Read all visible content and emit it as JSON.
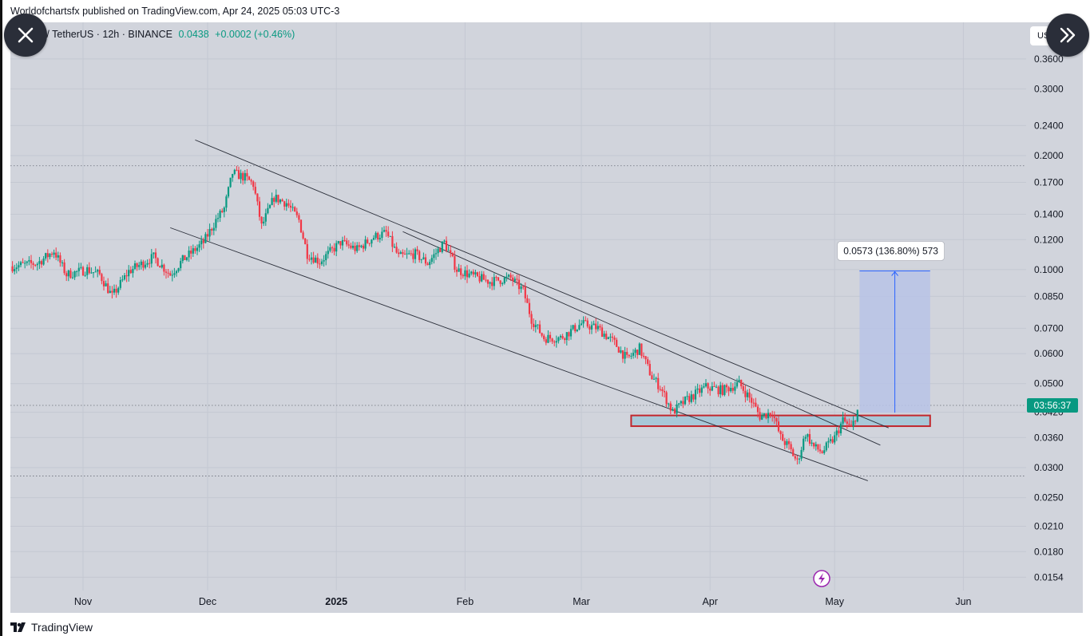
{
  "publish_line": "Worldofchartsfx published on TradingView.com, Apr 24, 2025 05:03 UTC-3",
  "symbol": {
    "name": "n / TetherUS",
    "interval": "12h",
    "exchange": "BINANCE",
    "last": "0.0438",
    "change": "+0.0002 (+0.46%)"
  },
  "currency_button": "USDT",
  "footer_brand": "TradingView",
  "icons": {
    "close": "close-icon",
    "expand": "double-chevron-right-icon",
    "lightning": "lightning-icon",
    "logo": "tradingview-logo-icon"
  },
  "colors": {
    "up": "#089981",
    "down": "#f23645",
    "background": "#d1d4dc",
    "measure_fill": "#b8c3e6",
    "measure_line": "#2962ff",
    "zone_fill": "#a8c8d8",
    "zone_border": "#c2272d",
    "countdown_bg": "#089981",
    "lightning": "#9c27b0"
  },
  "chart_data": {
    "type": "candlestick",
    "scale": "log",
    "interval": "12h",
    "y_ticks": [
      "0.3600",
      "0.3000",
      "0.2400",
      "0.2000",
      "0.1700",
      "0.1400",
      "0.1200",
      "0.1000",
      "0.0850",
      "0.0700",
      "0.0600",
      "0.0500",
      "0.0420",
      "0.0360",
      "0.0300",
      "0.0250",
      "0.0210",
      "0.0180",
      "0.0154"
    ],
    "x_ticks": [
      "Nov",
      "Dec",
      "2025",
      "Feb",
      "Mar",
      "Apr",
      "May",
      "Jun"
    ],
    "last_price": 0.0438,
    "countdown": "03:56:37",
    "price_path": [
      {
        "date": "2024-10-15",
        "price": 0.102
      },
      {
        "date": "2024-10-21",
        "price": 0.104
      },
      {
        "date": "2024-10-25",
        "price": 0.112
      },
      {
        "date": "2024-10-28",
        "price": 0.097
      },
      {
        "date": "2024-11-02",
        "price": 0.1
      },
      {
        "date": "2024-11-05",
        "price": 0.097
      },
      {
        "date": "2024-11-08",
        "price": 0.085
      },
      {
        "date": "2024-11-12",
        "price": 0.099
      },
      {
        "date": "2024-11-18",
        "price": 0.108
      },
      {
        "date": "2024-11-22",
        "price": 0.097
      },
      {
        "date": "2024-11-25",
        "price": 0.106
      },
      {
        "date": "2024-11-30",
        "price": 0.118
      },
      {
        "date": "2024-12-03",
        "price": 0.135
      },
      {
        "date": "2024-12-05",
        "price": 0.145
      },
      {
        "date": "2024-12-07",
        "price": 0.18
      },
      {
        "date": "2024-12-10",
        "price": 0.175
      },
      {
        "date": "2024-12-12",
        "price": 0.168
      },
      {
        "date": "2024-12-14",
        "price": 0.13
      },
      {
        "date": "2024-12-17",
        "price": 0.155
      },
      {
        "date": "2024-12-20",
        "price": 0.15
      },
      {
        "date": "2024-12-23",
        "price": 0.135
      },
      {
        "date": "2024-12-25",
        "price": 0.11
      },
      {
        "date": "2024-12-28",
        "price": 0.105
      },
      {
        "date": "2025-01-02",
        "price": 0.118
      },
      {
        "date": "2025-01-06",
        "price": 0.113
      },
      {
        "date": "2025-01-10",
        "price": 0.122
      },
      {
        "date": "2025-01-13",
        "price": 0.125
      },
      {
        "date": "2025-01-16",
        "price": 0.108
      },
      {
        "date": "2025-01-20",
        "price": 0.11
      },
      {
        "date": "2025-01-23",
        "price": 0.104
      },
      {
        "date": "2025-01-27",
        "price": 0.118
      },
      {
        "date": "2025-01-30",
        "price": 0.1
      },
      {
        "date": "2025-02-03",
        "price": 0.096
      },
      {
        "date": "2025-02-07",
        "price": 0.093
      },
      {
        "date": "2025-02-12",
        "price": 0.095
      },
      {
        "date": "2025-02-15",
        "price": 0.088
      },
      {
        "date": "2025-02-17",
        "price": 0.074
      },
      {
        "date": "2025-02-20",
        "price": 0.066
      },
      {
        "date": "2025-02-24",
        "price": 0.066
      },
      {
        "date": "2025-03-01",
        "price": 0.072
      },
      {
        "date": "2025-03-05",
        "price": 0.07
      },
      {
        "date": "2025-03-09",
        "price": 0.064
      },
      {
        "date": "2025-03-12",
        "price": 0.058
      },
      {
        "date": "2025-03-15",
        "price": 0.062
      },
      {
        "date": "2025-03-18",
        "price": 0.052
      },
      {
        "date": "2025-03-20",
        "price": 0.049
      },
      {
        "date": "2025-03-23",
        "price": 0.042
      },
      {
        "date": "2025-03-26",
        "price": 0.045
      },
      {
        "date": "2025-03-31",
        "price": 0.049
      },
      {
        "date": "2025-04-04",
        "price": 0.048
      },
      {
        "date": "2025-04-08",
        "price": 0.05
      },
      {
        "date": "2025-04-11",
        "price": 0.045
      },
      {
        "date": "2025-04-13",
        "price": 0.041
      },
      {
        "date": "2025-04-16",
        "price": 0.042
      },
      {
        "date": "2025-04-18",
        "price": 0.036
      },
      {
        "date": "2025-04-20",
        "price": 0.034
      },
      {
        "date": "2025-04-22",
        "price": 0.031
      },
      {
        "date": "2025-04-24",
        "price": 0.037
      },
      {
        "date": "2025-04-26",
        "price": 0.034
      },
      {
        "date": "2025-04-28",
        "price": 0.033
      },
      {
        "date": "2025-05-01",
        "price": 0.036
      },
      {
        "date": "2025-05-03",
        "price": 0.04
      },
      {
        "date": "2025-05-05",
        "price": 0.038
      },
      {
        "date": "2025-05-07",
        "price": 0.044
      }
    ],
    "channel_lines": [
      {
        "from": {
          "date": "2024-11-28",
          "price": 0.22
        },
        "to": {
          "date": "2025-05-14",
          "price": 0.0382
        }
      },
      {
        "from": {
          "date": "2024-11-22",
          "price": 0.129
        },
        "to": {
          "date": "2025-05-09",
          "price": 0.0277
        }
      },
      {
        "from": {
          "date": "2025-01-17",
          "price": 0.126
        },
        "to": {
          "date": "2025-05-12",
          "price": 0.0344
        }
      }
    ],
    "horizontal_levels": [
      0.188,
      0.0438,
      0.0285
    ],
    "support_zone": {
      "from": "2025-03-13",
      "to": "2025-05-24",
      "low": 0.0386,
      "high": 0.0412
    },
    "measure": {
      "from": "2025-05-07",
      "to": "2025-05-24",
      "low": 0.0419,
      "high": 0.0992,
      "label": "0.0573 (136.80%) 573"
    }
  }
}
